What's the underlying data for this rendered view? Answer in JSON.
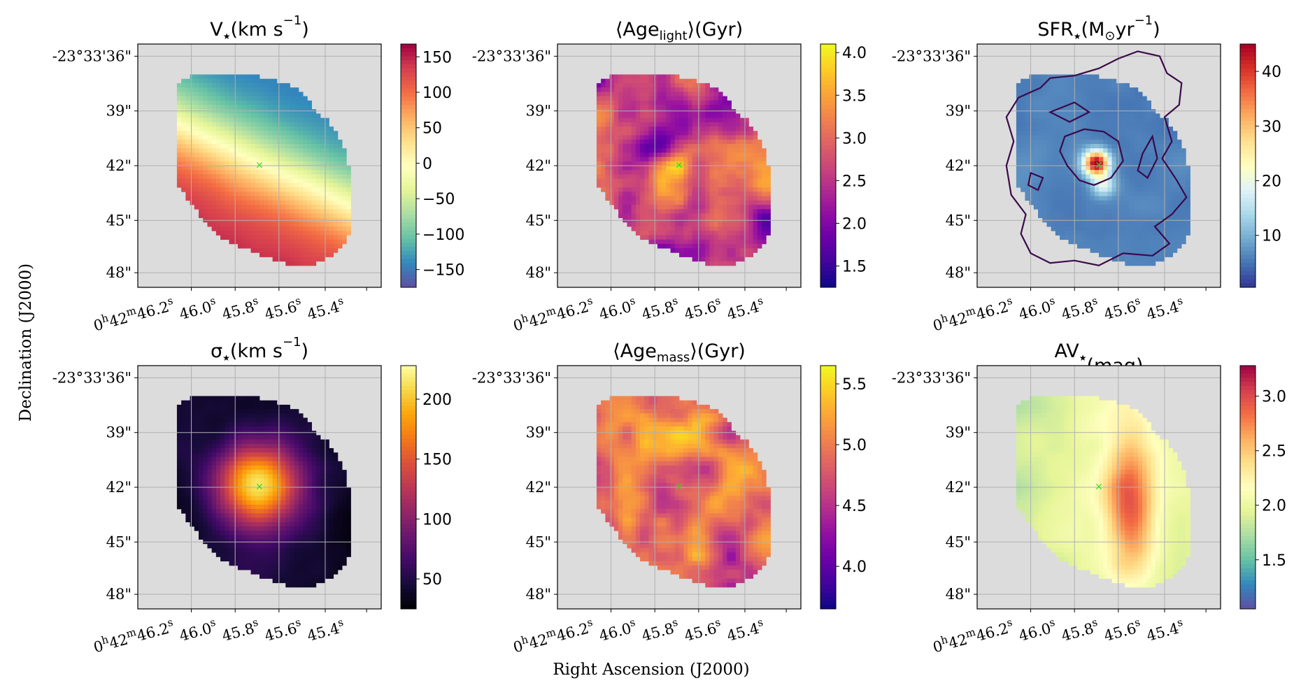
{
  "figure": {
    "xlabel": "Right Ascension (J2000)",
    "ylabel": "Declination (J2000)",
    "center_marker": "×",
    "dec_ticks": [
      "-23°33'36\"",
      "39\"",
      "42\"",
      "45\"",
      "48\""
    ],
    "ra_ticks": [
      {
        "base": "0",
        "sup1": "h",
        "mid": "42",
        "sup2": "m",
        "sec": "46.2",
        "sup3": "s"
      },
      {
        "base": "",
        "sup1": "",
        "mid": "",
        "sup2": "",
        "sec": "46.0",
        "sup3": "s"
      },
      {
        "base": "",
        "sup1": "",
        "mid": "",
        "sup2": "",
        "sec": "45.8",
        "sup3": "s"
      },
      {
        "base": "",
        "sup1": "",
        "mid": "",
        "sup2": "",
        "sec": "45.6",
        "sup3": "s"
      },
      {
        "base": "",
        "sup1": "",
        "mid": "",
        "sup2": "",
        "sec": "45.4",
        "sup3": "s"
      }
    ]
  },
  "chart_data": [
    {
      "type": "heatmap",
      "name": "stellar-velocity",
      "title_main": "V",
      "title_star": "★",
      "title_unit": "(km s",
      "title_exp": "−1",
      "title_close": ")",
      "cmap": "Spectral_r",
      "vmin": -175,
      "vmax": 168,
      "cbar_ticks": [
        {
          "v": 150,
          "label": "150"
        },
        {
          "v": 100,
          "label": "100"
        },
        {
          "v": 50,
          "label": "50"
        },
        {
          "v": 0,
          "label": "0"
        },
        {
          "v": -50,
          "label": "−50"
        },
        {
          "v": -100,
          "label": "−100"
        },
        {
          "v": -150,
          "label": "−150"
        }
      ],
      "cbar_tick_precision": "integer",
      "field": "velocity",
      "contours": false
    },
    {
      "type": "heatmap",
      "name": "light-weighted-age",
      "title_main": "⟨Age",
      "title_sub": "light",
      "title_close": "⟩(Gyr)",
      "cmap": "plasma",
      "vmin": 1.25,
      "vmax": 4.1,
      "cbar_ticks": [
        {
          "v": 4.0,
          "label": "4.0"
        },
        {
          "v": 3.5,
          "label": "3.5"
        },
        {
          "v": 3.0,
          "label": "3.0"
        },
        {
          "v": 2.5,
          "label": "2.5"
        },
        {
          "v": 2.0,
          "label": "2.0"
        },
        {
          "v": 1.5,
          "label": "1.5"
        }
      ],
      "field": "age_light",
      "contours": false
    },
    {
      "type": "heatmap",
      "name": "star-formation-rate",
      "title_main": "SFR",
      "title_star": "★",
      "title_unit": "(M",
      "title_sub": "⊙",
      "title_unit2": "yr",
      "title_exp": "−1",
      "title_close": ")",
      "cmap": "RdYlBu_r",
      "vmin": 0.5,
      "vmax": 45,
      "cbar_ticks": [
        {
          "v": 40,
          "label": "40"
        },
        {
          "v": 30,
          "label": "30"
        },
        {
          "v": 20,
          "label": "20"
        },
        {
          "v": 10,
          "label": "10"
        }
      ],
      "field": "sfr",
      "contours": true
    },
    {
      "type": "heatmap",
      "name": "velocity-dispersion",
      "title_main": "σ",
      "title_star": "★",
      "title_unit": "(km s",
      "title_exp": "−1",
      "title_close": ")",
      "cmap": "inferno",
      "vmin": 25,
      "vmax": 228,
      "cbar_ticks": [
        {
          "v": 200,
          "label": "200"
        },
        {
          "v": 150,
          "label": "150"
        },
        {
          "v": 100,
          "label": "100"
        },
        {
          "v": 50,
          "label": "50"
        }
      ],
      "field": "dispersion",
      "contours": false
    },
    {
      "type": "heatmap",
      "name": "mass-weighted-age",
      "title_main": "⟨Age",
      "title_sub": "mass",
      "title_close": "⟩(Gyr)",
      "cmap": "plasma",
      "vmin": 3.65,
      "vmax": 5.65,
      "cbar_ticks": [
        {
          "v": 5.5,
          "label": "5.5"
        },
        {
          "v": 5.0,
          "label": "5.0"
        },
        {
          "v": 4.5,
          "label": "4.5"
        },
        {
          "v": 4.0,
          "label": "4.0"
        }
      ],
      "field": "age_mass",
      "contours": false
    },
    {
      "type": "heatmap",
      "name": "visual-extinction",
      "title_main": "AV",
      "title_star": "★",
      "title_close": "(mag)",
      "cmap": "Spectral_r",
      "vmin": 1.05,
      "vmax": 3.28,
      "cbar_ticks": [
        {
          "v": 3.0,
          "label": "3.0"
        },
        {
          "v": 2.5,
          "label": "2.5"
        },
        {
          "v": 2.0,
          "label": "2.0"
        },
        {
          "v": 1.5,
          "label": "1.5"
        }
      ],
      "field": "extinction",
      "contours": false
    }
  ]
}
